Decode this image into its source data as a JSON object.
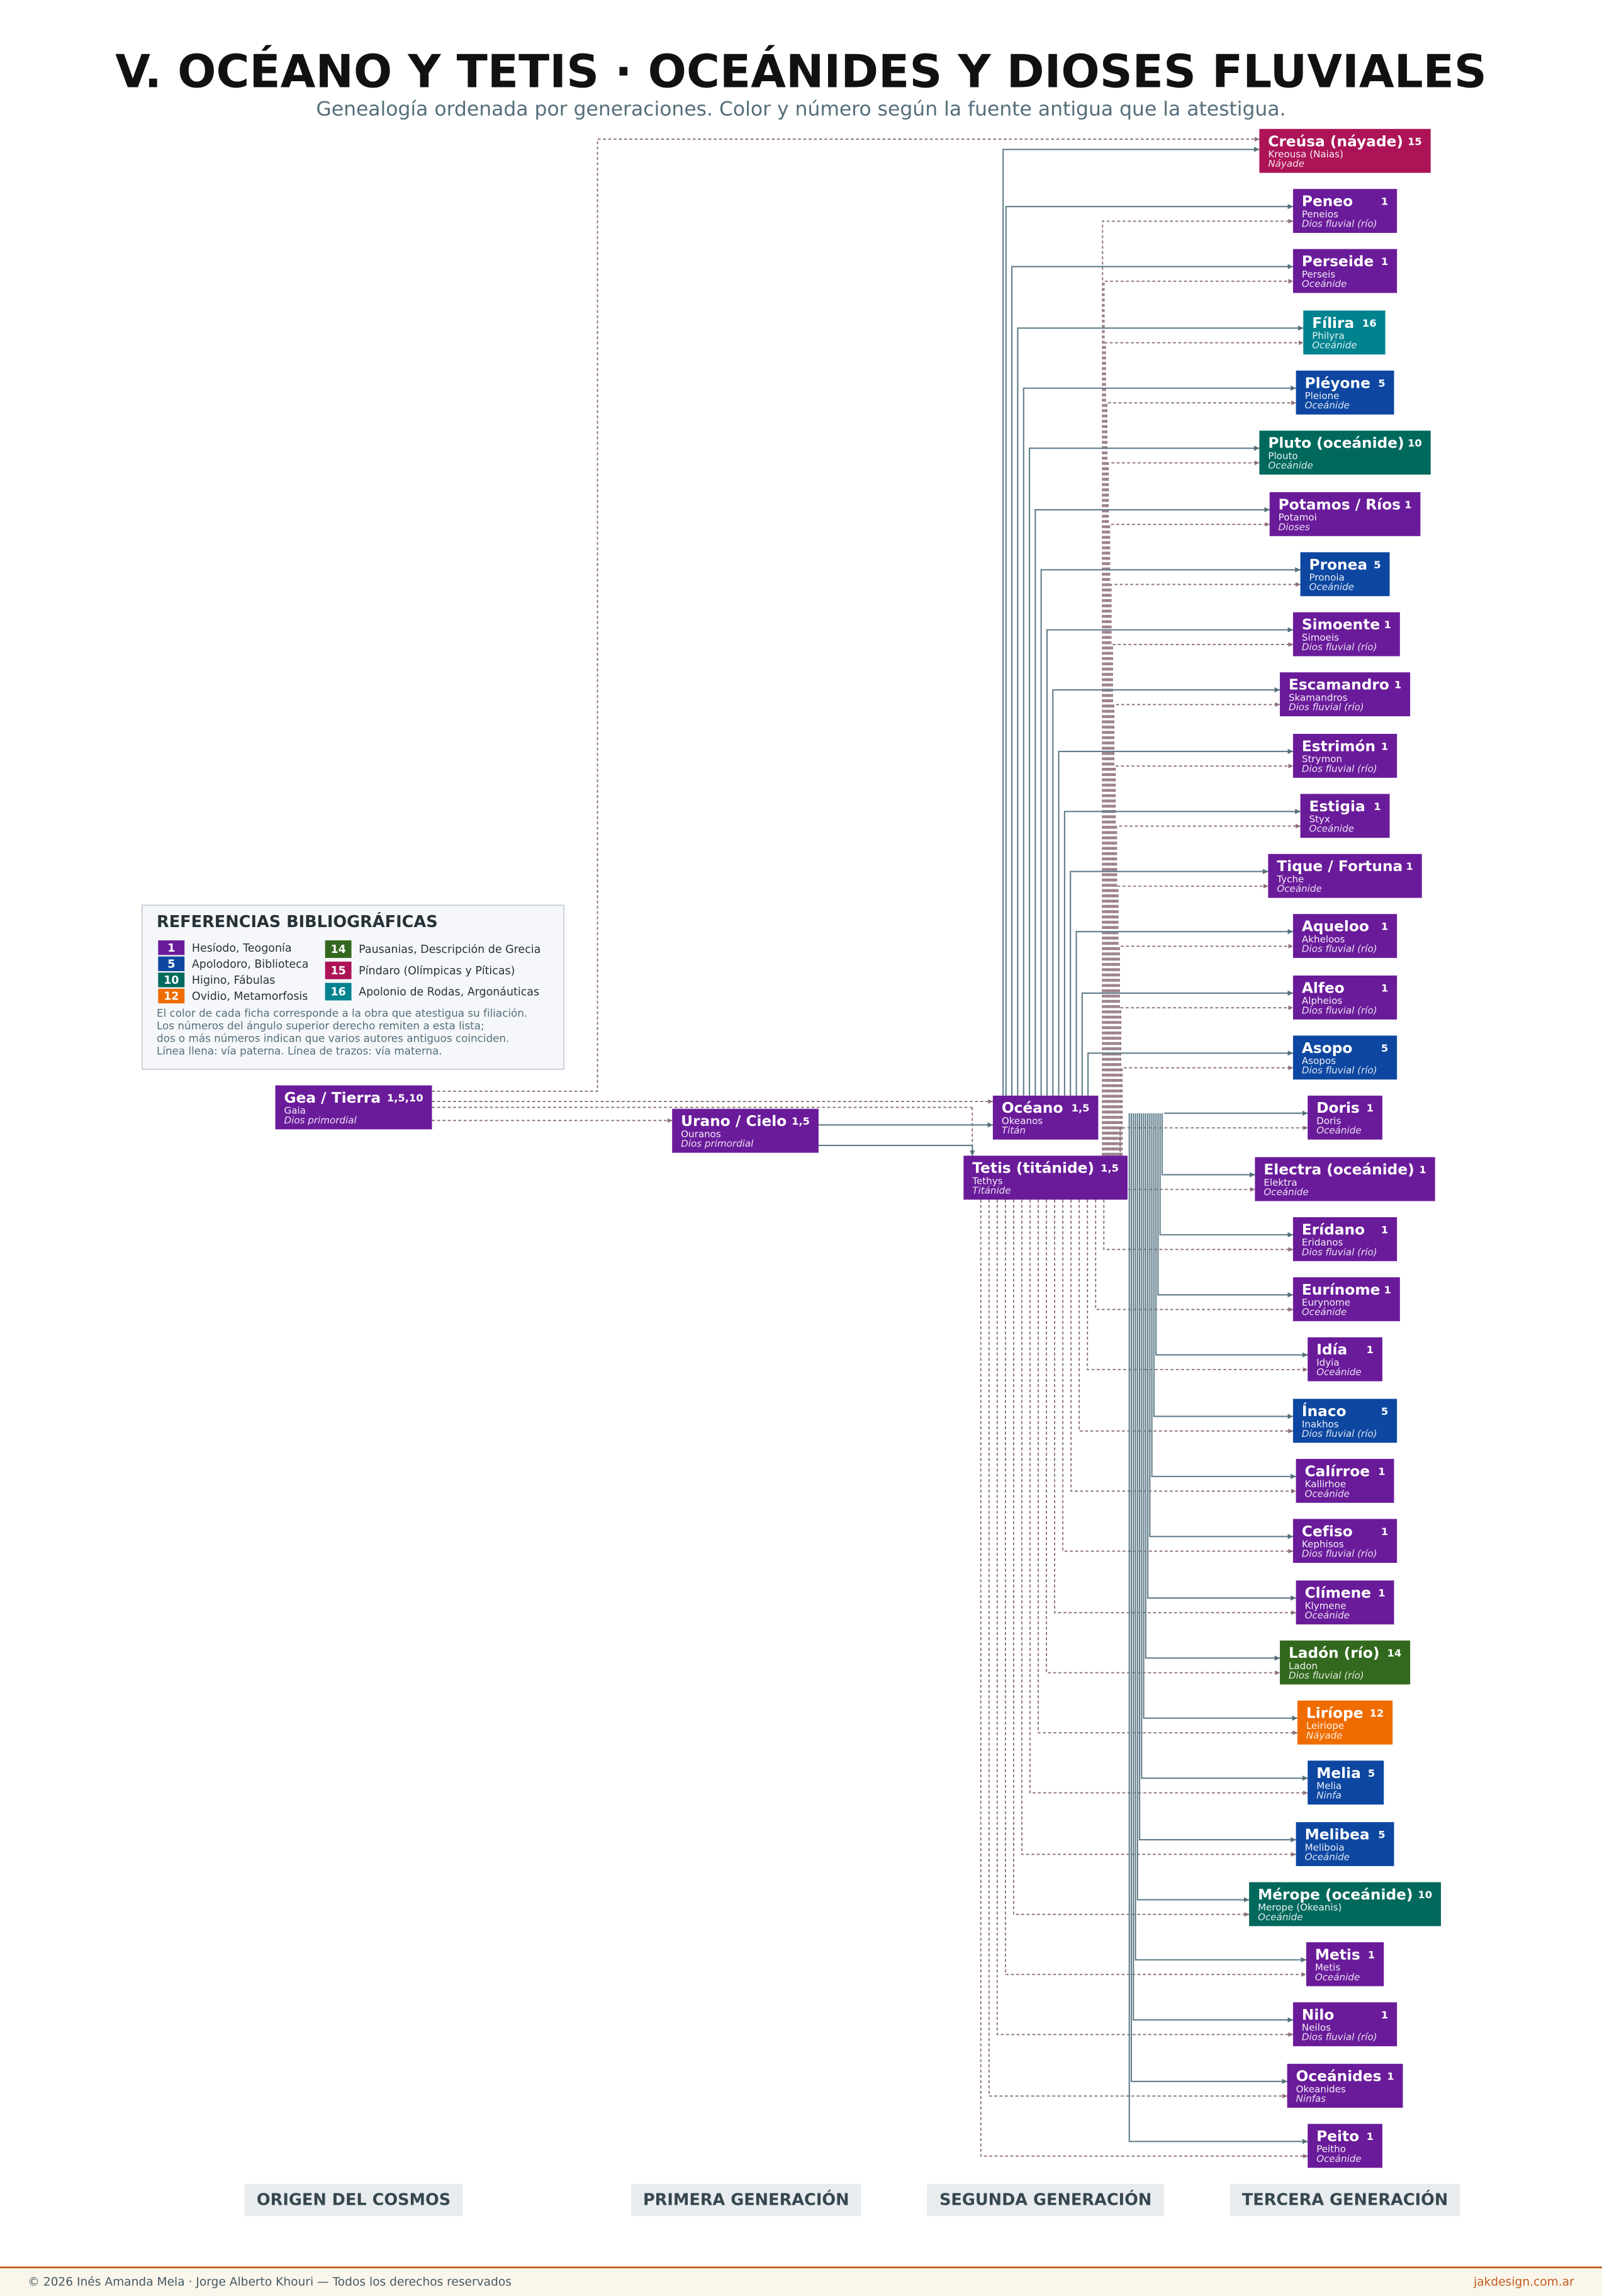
{
  "header": {
    "title": "V. OCÉANO Y TETIS · OCEÁNIDES Y DIOSES FLUVIALES",
    "subtitle": "Genealogía ordenada por generaciones. Color y número según la fuente antigua que la atestigua."
  },
  "legend": {
    "title": "REFERENCIAS BIBLIOGRÁFICAS",
    "sources": [
      {
        "number": "1",
        "label": "Hesíodo, Teogonía",
        "color": "#6a1b9a"
      },
      {
        "number": "5",
        "label": "Apolodoro, Biblioteca",
        "color": "#0d47a1"
      },
      {
        "number": "10",
        "label": "Higino, Fábulas",
        "color": "#00695c"
      },
      {
        "number": "12",
        "label": "Ovidio, Metamorfosis",
        "color": "#ef6c00"
      },
      {
        "number": "14",
        "label": "Pausanias, Descripción de Grecia",
        "color": "#33691e"
      },
      {
        "number": "15",
        "label": "Píndaro (Olímpicas y Píticas)",
        "color": "#ad1457"
      },
      {
        "number": "16",
        "label": "Apolonio de Rodas, Argonáuticas",
        "color": "#00838f"
      }
    ],
    "note": [
      "El color de cada ficha corresponde a la obra que atestigua su filiación.",
      "Los números del ángulo superior derecho remiten a esta lista;",
      "dos o más números indican que varios autores antiguos coinciden.",
      "Línea llena: vía paterna. Línea de trazos: vía materna."
    ]
  },
  "nodes": [
    {
      "name": "Gea / Tierra",
      "sources": "1,5,10",
      "greek": "Gaia",
      "kind": "Dios primordial"
    },
    {
      "name": "Urano / Cielo",
      "sources": "1,5",
      "greek": "Ouranos",
      "kind": "Dios primordial"
    },
    {
      "name": "Océano",
      "sources": "1,5",
      "greek": "Okeanos",
      "kind": "Titán"
    },
    {
      "name": "Tetis (titánide)",
      "sources": "1,5",
      "greek": "Tethys",
      "kind": "Titánide"
    },
    {
      "name": "Creúsa (náyade)",
      "sources": "15",
      "greek": "Kreousa (Naias)",
      "kind": "Náyade"
    },
    {
      "name": "Peneo",
      "sources": "1",
      "greek": "Peneios",
      "kind": "Dios fluvial (río)"
    },
    {
      "name": "Perseide",
      "sources": "1",
      "greek": "Perseis",
      "kind": "Oceánide"
    },
    {
      "name": "Fílira",
      "sources": "16",
      "greek": "Philyra",
      "kind": "Oceánide"
    },
    {
      "name": "Pléyone",
      "sources": "5",
      "greek": "Pleione",
      "kind": "Oceánide"
    },
    {
      "name": "Pluto (oceánide)",
      "sources": "10",
      "greek": "Plouto",
      "kind": "Oceánide"
    },
    {
      "name": "Potamos / Ríos",
      "sources": "1",
      "greek": "Potamoi",
      "kind": "Dioses"
    },
    {
      "name": "Pronea",
      "sources": "5",
      "greek": "Pronoia",
      "kind": "Oceánide"
    },
    {
      "name": "Simoente",
      "sources": "1",
      "greek": "Simoeis",
      "kind": "Dios fluvial (río)"
    },
    {
      "name": "Escamandro",
      "sources": "1",
      "greek": "Skamandros",
      "kind": "Dios fluvial (río)"
    },
    {
      "name": "Estrimón",
      "sources": "1",
      "greek": "Strymon",
      "kind": "Dios fluvial (río)"
    },
    {
      "name": "Estigia",
      "sources": "1",
      "greek": "Styx",
      "kind": "Oceánide"
    },
    {
      "name": "Tique / Fortuna",
      "sources": "1",
      "greek": "Tyche",
      "kind": "Oceánide"
    },
    {
      "name": "Aqueloo",
      "sources": "1",
      "greek": "Akheloos",
      "kind": "Dios fluvial (río)"
    },
    {
      "name": "Alfeo",
      "sources": "1",
      "greek": "Alpheios",
      "kind": "Dios fluvial (río)"
    },
    {
      "name": "Asopo",
      "sources": "5",
      "greek": "Asopos",
      "kind": "Dios fluvial (río)"
    },
    {
      "name": "Doris",
      "sources": "1",
      "greek": "Doris",
      "kind": "Oceánide"
    },
    {
      "name": "Electra (oceánide)",
      "sources": "1",
      "greek": "Elektra",
      "kind": "Oceánide"
    },
    {
      "name": "Erídano",
      "sources": "1",
      "greek": "Eridanos",
      "kind": "Dios fluvial (río)"
    },
    {
      "name": "Eurínome",
      "sources": "1",
      "greek": "Eurynome",
      "kind": "Oceánide"
    },
    {
      "name": "Idía",
      "sources": "1",
      "greek": "Idyia",
      "kind": "Oceánide"
    },
    {
      "name": "Ínaco",
      "sources": "5",
      "greek": "Inakhos",
      "kind": "Dios fluvial (río)"
    },
    {
      "name": "Calírroe",
      "sources": "1",
      "greek": "Kallirhoe",
      "kind": "Oceánide"
    },
    {
      "name": "Cefiso",
      "sources": "1",
      "greek": "Kephisos",
      "kind": "Dios fluvial (río)"
    },
    {
      "name": "Clímene",
      "sources": "1",
      "greek": "Klymene",
      "kind": "Oceánide"
    },
    {
      "name": "Ladón (río)",
      "sources": "14",
      "greek": "Ladon",
      "kind": "Dios fluvial (río)"
    },
    {
      "name": "Liríope",
      "sources": "12",
      "greek": "Leiriope",
      "kind": "Náyade"
    },
    {
      "name": "Melia",
      "sources": "5",
      "greek": "Melia",
      "kind": "Ninfa"
    },
    {
      "name": "Melibea",
      "sources": "5",
      "greek": "Meliboia",
      "kind": "Oceánide"
    },
    {
      "name": "Mérope (oceánide)",
      "sources": "10",
      "greek": "Merope (Okeanis)",
      "kind": "Oceánide"
    },
    {
      "name": "Metis",
      "sources": "1",
      "greek": "Metis",
      "kind": "Oceánide"
    },
    {
      "name": "Nilo",
      "sources": "1",
      "greek": "Neilos",
      "kind": "Dios fluvial (río)"
    },
    {
      "name": "Oceánides",
      "sources": "1",
      "greek": "Okeanides",
      "kind": "Ninfas"
    },
    {
      "name": "Peito",
      "sources": "1",
      "greek": "Peitho",
      "kind": "Oceánide"
    }
  ],
  "columns": [
    "ORIGEN DEL COSMOS",
    "PRIMERA GENERACIÓN",
    "SEGUNDA GENERACIÓN",
    "TERCERA GENERACIÓN"
  ],
  "footer": {
    "credits": "© 2026 Inés Amanda Mela · Jorge Alberto Khouri — Todos los derechos reservados",
    "site": "jakdesign.com.ar"
  }
}
